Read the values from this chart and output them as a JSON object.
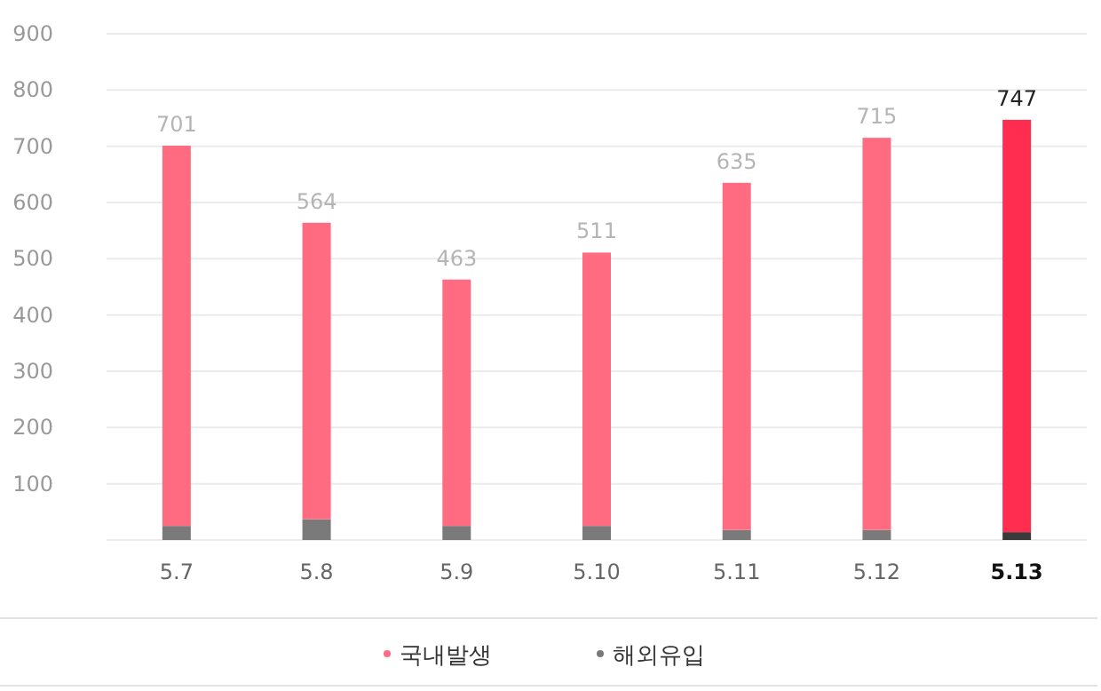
{
  "chart_data": {
    "type": "bar",
    "stacked": true,
    "categories": [
      "5.7",
      "5.8",
      "5.9",
      "5.10",
      "5.11",
      "5.12",
      "5.13"
    ],
    "series": [
      {
        "name": "해외유입",
        "color": "#7a7a7a",
        "colors": [
          "#7a7a7a",
          "#7a7a7a",
          "#7a7a7a",
          "#7a7a7a",
          "#7a7a7a",
          "#7a7a7a",
          "#3a3a3a"
        ],
        "values": [
          25,
          37,
          25,
          25,
          18,
          18,
          14
        ]
      },
      {
        "name": "국내발생",
        "color": "#ff6b81",
        "colors": [
          "#ff6b81",
          "#ff6b81",
          "#ff6b81",
          "#ff6b81",
          "#ff6b81",
          "#ff6b81",
          "#ff2d4f"
        ],
        "values": [
          676,
          527,
          438,
          486,
          617,
          697,
          733
        ]
      }
    ],
    "totals": [
      "701",
      "564",
      "463",
      "511",
      "635",
      "715",
      "747"
    ],
    "ylim": [
      0,
      900
    ],
    "yticks": [
      {
        "value": 0,
        "label": null
      },
      100,
      200,
      300,
      400,
      500,
      600,
      700,
      800,
      900
    ],
    "grid": "y",
    "legend": "bottom"
  }
}
